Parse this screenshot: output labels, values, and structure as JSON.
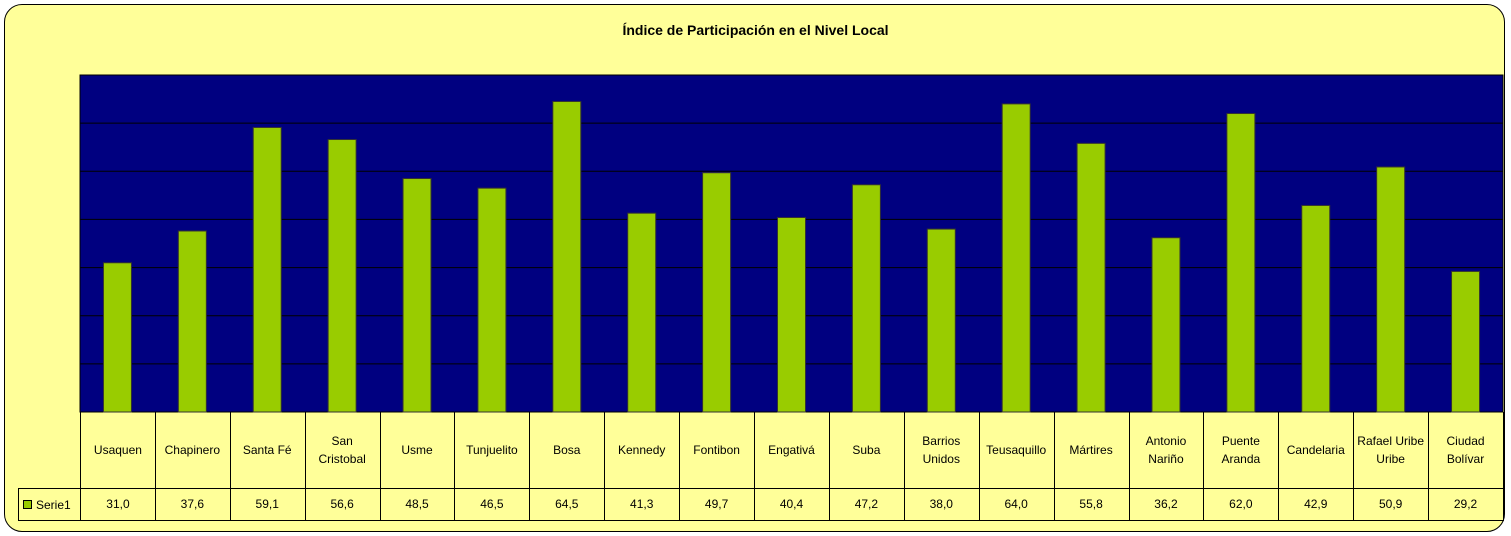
{
  "chart_data": {
    "type": "bar",
    "title": "Índice de Participación en el Nivel Local",
    "categories": [
      "Usaquen",
      "Chapinero",
      "Santa Fé",
      "San Cristobal",
      "Usme",
      "Tunjuelito",
      "Bosa",
      "Kennedy",
      "Fontibon",
      "Engativá",
      "Suba",
      "Barrios Unidos",
      "Teusaquillo",
      "Mártires",
      "Antonio Nariño",
      "Puente Aranda",
      "Candelaria",
      "Rafael Uribe Uribe",
      "Ciudad Bolívar"
    ],
    "series": [
      {
        "name": "Serie1",
        "color": "#99cc00",
        "values": [
          31.0,
          37.6,
          59.1,
          56.6,
          48.5,
          46.5,
          64.5,
          41.3,
          49.7,
          40.4,
          47.2,
          38.0,
          64.0,
          55.8,
          36.2,
          62.0,
          42.9,
          50.9,
          29.2
        ],
        "value_labels": [
          "31,0",
          "37,6",
          "59,1",
          "56,6",
          "48,5",
          "46,5",
          "64,5",
          "41,3",
          "49,7",
          "40,4",
          "47,2",
          "38,0",
          "64,0",
          "55,8",
          "36,2",
          "62,0",
          "42,9",
          "50,9",
          "29,2"
        ]
      }
    ],
    "ylim": [
      0,
      70
    ],
    "yticks": [
      0,
      10,
      20,
      30,
      40,
      50,
      60,
      70
    ],
    "grid": true
  }
}
